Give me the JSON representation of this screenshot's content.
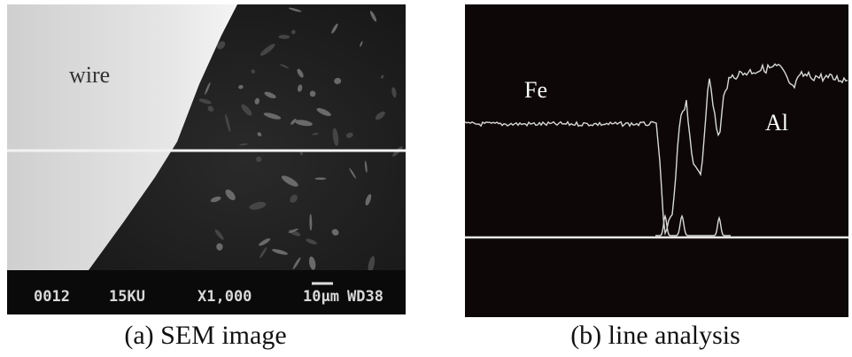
{
  "panels": [
    {
      "label": "wire",
      "databar": [
        "0012",
        "15KU",
        "X1,000",
        "10μm",
        "WD38"
      ],
      "caption": "(a) SEM image"
    },
    {
      "labels": [
        "Fe",
        "Al"
      ],
      "caption": "(b) line analysis"
    }
  ]
}
